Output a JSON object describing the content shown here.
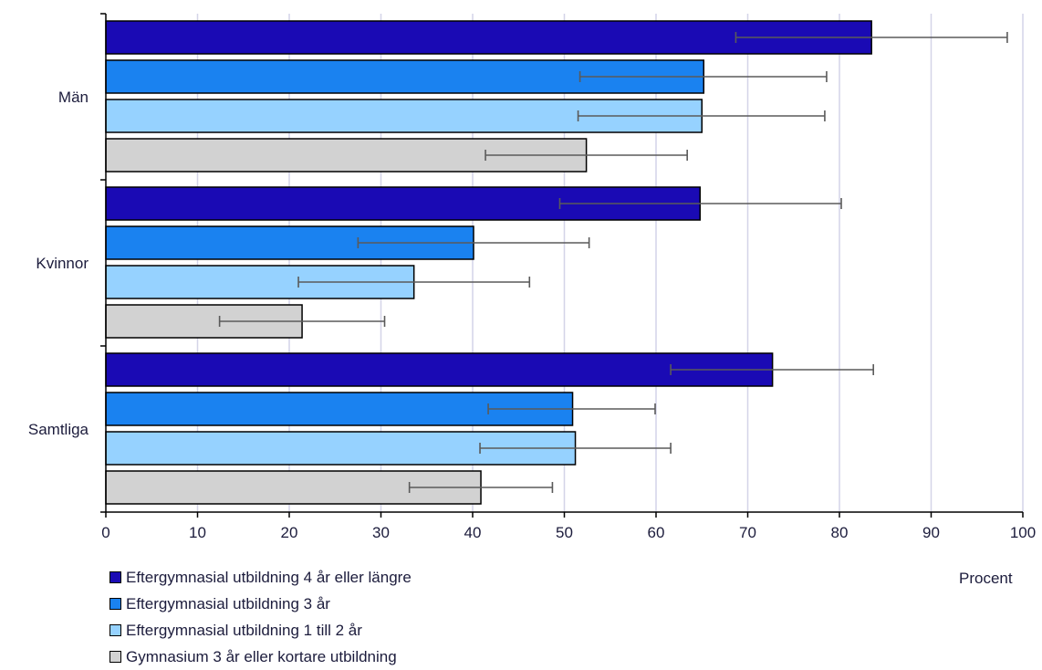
{
  "chart_data": {
    "type": "bar",
    "orientation": "horizontal",
    "categories": [
      "Män",
      "Kvinnor",
      "Samtliga"
    ],
    "series": [
      {
        "name": "Eftergymnasial utbildning 4 år eller längre",
        "color": "#1a0ab4",
        "values": [
          83.5,
          64.8,
          72.7
        ],
        "err_low": [
          68.7,
          49.5,
          61.6
        ],
        "err_high": [
          98.3,
          80.2,
          83.7
        ]
      },
      {
        "name": "Eftergymnasial utbildning 3 år",
        "color": "#1a82f0",
        "values": [
          65.2,
          40.1,
          50.9
        ],
        "err_low": [
          51.7,
          27.5,
          41.7
        ],
        "err_high": [
          78.6,
          52.7,
          59.9
        ]
      },
      {
        "name": "Eftergymnasial utbildning 1 till 2 år",
        "color": "#96d2ff",
        "values": [
          65.0,
          33.6,
          51.2
        ],
        "err_low": [
          51.5,
          21.0,
          40.8
        ],
        "err_high": [
          78.4,
          46.2,
          61.6
        ]
      },
      {
        "name": "Gymnasium 3 år eller kortare utbildning",
        "color": "#d2d2d2",
        "values": [
          52.4,
          21.4,
          40.9
        ],
        "err_low": [
          41.4,
          12.4,
          33.1
        ],
        "err_high": [
          63.4,
          30.4,
          48.7
        ]
      }
    ],
    "xlim": [
      0,
      100
    ],
    "xticks": [
      "0",
      "10",
      "20",
      "30",
      "40",
      "50",
      "60",
      "70",
      "80",
      "90",
      "100"
    ],
    "xlabel": "Procent",
    "grid": true,
    "legend_position": "bottom-left"
  }
}
